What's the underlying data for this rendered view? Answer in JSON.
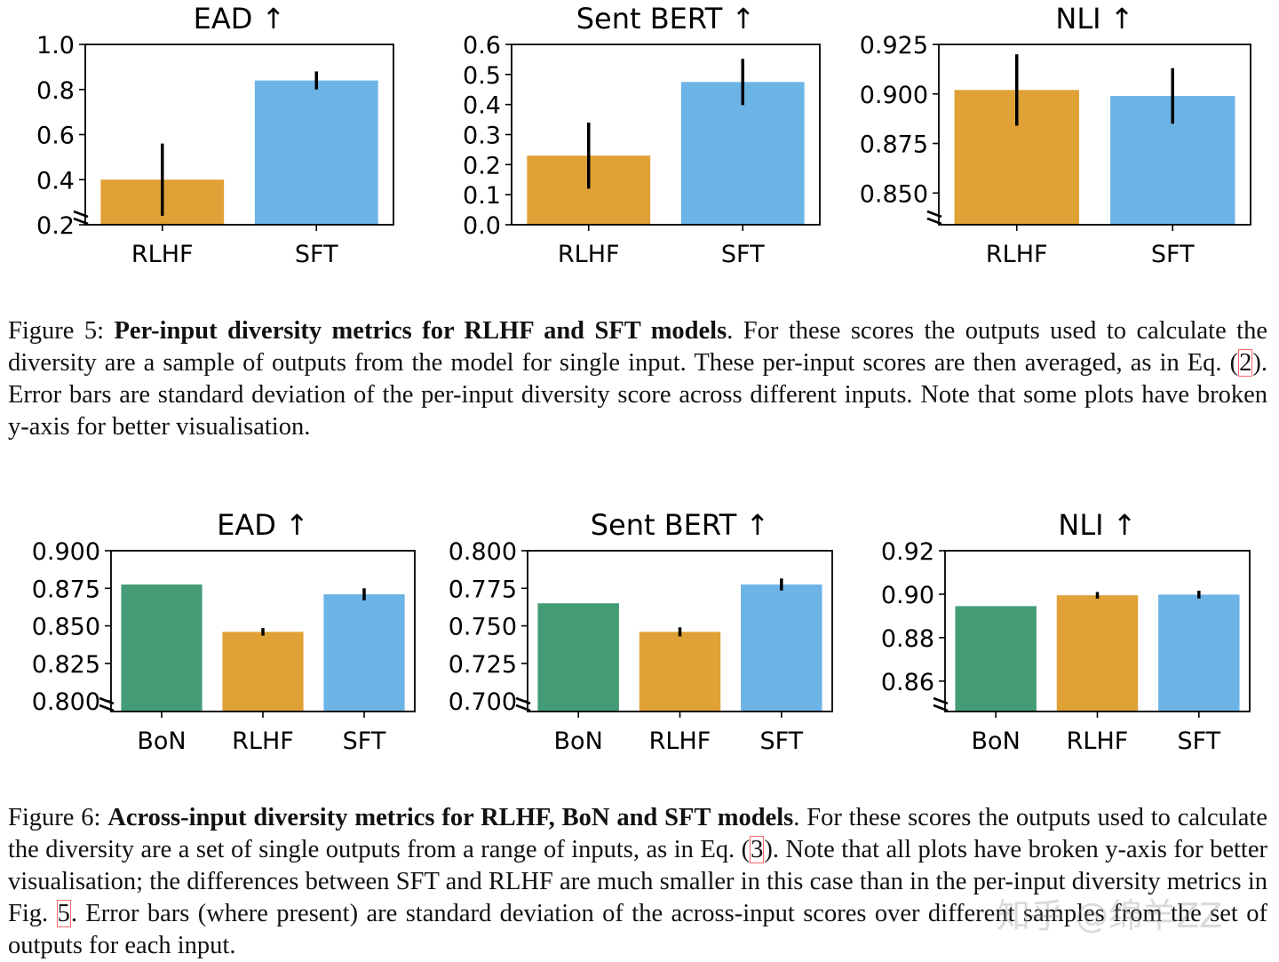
{
  "chart_data": [
    {
      "id": "f5a",
      "type": "bar",
      "title": "EAD",
      "arrow": "↑",
      "broken_axis": true,
      "categories": [
        "RLHF",
        "SFT"
      ],
      "values": [
        0.4,
        0.84
      ],
      "errors": [
        0.16,
        0.04
      ],
      "colors": [
        "#e0a136",
        "#6cb4e6"
      ],
      "ylim": [
        0.2,
        1.0
      ],
      "yticks": [
        0.2,
        0.4,
        0.6,
        0.8,
        1.0
      ],
      "ytick_labels": [
        "0.2",
        "0.4",
        "0.6",
        "0.8",
        "1.0"
      ]
    },
    {
      "id": "f5b",
      "type": "bar",
      "title": "Sent BERT",
      "arrow": "↑",
      "broken_axis": false,
      "categories": [
        "RLHF",
        "SFT"
      ],
      "values": [
        0.23,
        0.475
      ],
      "errors": [
        0.11,
        0.077
      ],
      "colors": [
        "#e0a136",
        "#6cb4e6"
      ],
      "ylim": [
        0.0,
        0.6
      ],
      "yticks": [
        0.0,
        0.1,
        0.2,
        0.3,
        0.4,
        0.5,
        0.6
      ],
      "ytick_labels": [
        "0.0",
        "0.1",
        "0.2",
        "0.3",
        "0.4",
        "0.5",
        "0.6"
      ]
    },
    {
      "id": "f5c",
      "type": "bar",
      "title": "NLI",
      "arrow": "↑",
      "broken_axis": true,
      "categories": [
        "RLHF",
        "SFT"
      ],
      "values": [
        0.902,
        0.899
      ],
      "errors": [
        0.018,
        0.014
      ],
      "colors": [
        "#e0a136",
        "#6cb4e6"
      ],
      "ylim": [
        0.834,
        0.925
      ],
      "yticks": [
        0.85,
        0.875,
        0.9,
        0.925
      ],
      "ytick_labels": [
        "0.850",
        "0.875",
        "0.900",
        "0.925"
      ]
    },
    {
      "id": "f6a",
      "type": "bar",
      "title": "EAD",
      "arrow": "↑",
      "broken_axis": true,
      "categories": [
        "BoN",
        "RLHF",
        "SFT"
      ],
      "values": [
        0.8775,
        0.846,
        0.871
      ],
      "errors": [
        0,
        0.0025,
        0.004
      ],
      "colors": [
        "#449c77",
        "#e0a136",
        "#6cb4e6"
      ],
      "ylim": [
        0.793,
        0.9
      ],
      "yticks": [
        0.8,
        0.825,
        0.85,
        0.875,
        0.9
      ],
      "ytick_labels": [
        "0.800",
        "0.825",
        "0.850",
        "0.875",
        "0.900"
      ]
    },
    {
      "id": "f6b",
      "type": "bar",
      "title": "Sent BERT",
      "arrow": "↑",
      "broken_axis": true,
      "categories": [
        "BoN",
        "RLHF",
        "SFT"
      ],
      "values": [
        0.765,
        0.746,
        0.7775
      ],
      "errors": [
        0,
        0.003,
        0.004
      ],
      "colors": [
        "#449c77",
        "#e0a136",
        "#6cb4e6"
      ],
      "ylim": [
        0.693,
        0.8
      ],
      "yticks": [
        0.7,
        0.725,
        0.75,
        0.775,
        0.8
      ],
      "ytick_labels": [
        "0.700",
        "0.725",
        "0.750",
        "0.775",
        "0.800"
      ]
    },
    {
      "id": "f6c",
      "type": "bar",
      "title": "NLI",
      "arrow": "↑",
      "broken_axis": true,
      "categories": [
        "BoN",
        "RLHF",
        "SFT"
      ],
      "values": [
        0.8945,
        0.8995,
        0.8998
      ],
      "errors": [
        0,
        0.0015,
        0.0018
      ],
      "colors": [
        "#449c77",
        "#e0a136",
        "#6cb4e6"
      ],
      "ylim": [
        0.846,
        0.92
      ],
      "yticks": [
        0.86,
        0.88,
        0.9,
        0.92
      ],
      "ytick_labels": [
        "0.86",
        "0.88",
        "0.90",
        "0.92"
      ]
    }
  ],
  "captions": {
    "fig5": {
      "label": "Figure 5:",
      "bold": "Per-input diversity metrics for RLHF and SFT models",
      "text_1": ".  For these scores the outputs used to calculate the diversity are a sample of outputs from the model for single input. These per-input scores are then averaged, as in Eq. (",
      "ref": "2",
      "text_2": "). Error bars are standard deviation of the per-input diversity score across different inputs. Note that some plots have broken y-axis for better visualisation."
    },
    "fig6": {
      "label": "Figure 6:",
      "bold": "Across-input diversity metrics for RLHF, BoN and SFT models",
      "text_1": ". For these scores the outputs used to calculate the diversity are a set of single outputs from a range of inputs, as in Eq. (",
      "ref": "3",
      "text_2": "). Note that all plots have broken y-axis for better visualisation; the differences between SFT and RLHF are much smaller in this case than in the per-input diversity metrics in Fig. ",
      "ref2": "5",
      "text_3": ". Error bars (where present) are standard deviation of the across-input scores over different samples from the set of outputs for each input."
    }
  },
  "watermark": "知乎 @绵羊ZZ"
}
